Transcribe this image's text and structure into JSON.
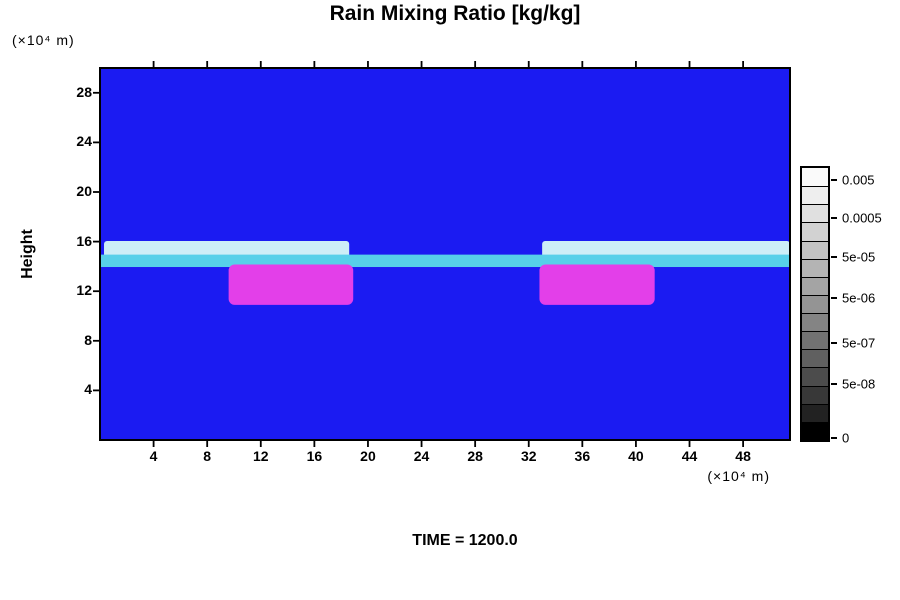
{
  "chart_data": {
    "type": "heatmap",
    "title": "Rain Mixing Ratio [kg/kg]",
    "ylabel": "Height",
    "ylabel_unit": "(×10⁴ m)",
    "xlabel_unit": "(×10⁴ m)",
    "annotation": "TIME = 1200.0",
    "xlim": [
      0,
      51.5
    ],
    "ylim": [
      0,
      30
    ],
    "x_ticks": [
      4,
      8,
      12,
      16,
      20,
      24,
      28,
      32,
      36,
      40,
      44,
      48
    ],
    "y_ticks": [
      4,
      8,
      12,
      16,
      20,
      24,
      28
    ],
    "grid": false,
    "background_color": "#1b1bf2",
    "features": [
      {
        "name": "left-upper-band",
        "x": [
          0.3,
          18.6
        ],
        "h": [
          14.6,
          16.05
        ],
        "color": "#cdeef7",
        "rx": 3
      },
      {
        "name": "right-upper-band",
        "x": [
          33.0,
          51.5
        ],
        "h": [
          14.6,
          16.05
        ],
        "color": "#cdeef7",
        "rx": 3
      },
      {
        "name": "full-width-stripe",
        "x": [
          0,
          51.5
        ],
        "h": [
          13.95,
          14.95
        ],
        "color": "#57d0e9",
        "rx": 0
      },
      {
        "name": "left-rain-core",
        "x": [
          9.6,
          18.9
        ],
        "h": [
          10.9,
          14.15
        ],
        "color": "#e33fe9",
        "rx": 6
      },
      {
        "name": "right-rain-core",
        "x": [
          32.8,
          41.4
        ],
        "h": [
          10.9,
          14.15
        ],
        "color": "#e33fe9",
        "rx": 6
      }
    ],
    "colorbar": {
      "colors": [
        "#fafafa",
        "#eeeeee",
        "#e0e0e0",
        "#d2d2d2",
        "#c4c4c4",
        "#b4b4b4",
        "#a4a4a4",
        "#949494",
        "#848484",
        "#727272",
        "#606060",
        "#4c4c4c",
        "#383838",
        "#222222",
        "#000000"
      ],
      "labels": [
        {
          "text": "0.005",
          "pos": 0.05
        },
        {
          "text": "0.0005",
          "pos": 0.19
        },
        {
          "text": "5e-05",
          "pos": 0.33
        },
        {
          "text": "5e-06",
          "pos": 0.48
        },
        {
          "text": "5e-07",
          "pos": 0.64
        },
        {
          "text": "5e-08",
          "pos": 0.79
        },
        {
          "text": "0",
          "pos": 0.985
        }
      ]
    }
  }
}
